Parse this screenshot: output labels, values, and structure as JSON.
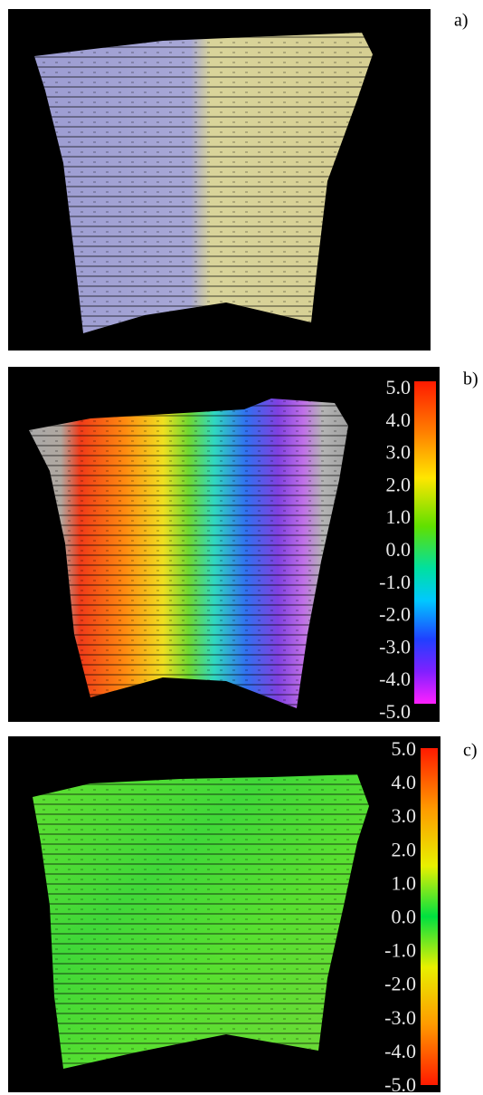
{
  "panels": [
    {
      "label": "a)"
    },
    {
      "label": "b)",
      "colorbar": {
        "ticks": [
          "5.0",
          "4.0",
          "3.0",
          "2.0",
          "1.0",
          "0.0",
          "-1.0",
          "-2.0",
          "-3.0",
          "-4.0",
          "-5.0"
        ]
      }
    },
    {
      "label": "c)",
      "colorbar": {
        "ticks": [
          "5.0",
          "4.0",
          "3.0",
          "2.0",
          "1.0",
          "0.0",
          "-1.0",
          "-2.0",
          "-3.0",
          "-4.0",
          "-5.0"
        ]
      }
    }
  ]
}
